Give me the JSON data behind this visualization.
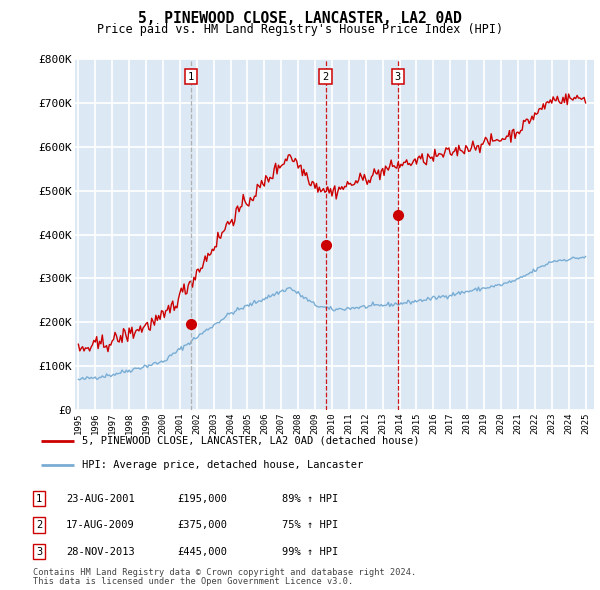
{
  "title": "5, PINEWOOD CLOSE, LANCASTER, LA2 0AD",
  "subtitle": "Price paid vs. HM Land Registry's House Price Index (HPI)",
  "ylim": [
    0,
    800000
  ],
  "yticks": [
    0,
    100000,
    200000,
    300000,
    400000,
    500000,
    600000,
    700000,
    800000
  ],
  "ytick_labels": [
    "£0",
    "£100K",
    "£200K",
    "£300K",
    "£400K",
    "£500K",
    "£600K",
    "£700K",
    "£800K"
  ],
  "xlim_start": 1994.8,
  "xlim_end": 2025.5,
  "plot_bg_color": "#dce9f5",
  "grid_color": "#ffffff",
  "red_line_color": "#cc0000",
  "blue_line_color": "#7aadd4",
  "transactions": [
    {
      "num": 1,
      "date": "23-AUG-2001",
      "price": 195000,
      "year": 2001.64,
      "hpi_pct": "89%",
      "direction": "↑",
      "vline_style": "dashed",
      "vline_color": "#aaaaaa"
    },
    {
      "num": 2,
      "date": "17-AUG-2009",
      "price": 375000,
      "year": 2009.62,
      "hpi_pct": "75%",
      "direction": "↑",
      "vline_style": "dashed",
      "vline_color": "#cc0000"
    },
    {
      "num": 3,
      "date": "28-NOV-2013",
      "price": 445000,
      "year": 2013.9,
      "hpi_pct": "99%",
      "direction": "↑",
      "vline_style": "dashed",
      "vline_color": "#cc0000"
    }
  ],
  "legend_prop_label": "5, PINEWOOD CLOSE, LANCASTER, LA2 0AD (detached house)",
  "legend_hpi_label": "HPI: Average price, detached house, Lancaster",
  "footnote1": "Contains HM Land Registry data © Crown copyright and database right 2024.",
  "footnote2": "This data is licensed under the Open Government Licence v3.0.",
  "xtick_years": [
    1995,
    1996,
    1997,
    1998,
    1999,
    2000,
    2001,
    2002,
    2003,
    2004,
    2005,
    2006,
    2007,
    2008,
    2009,
    2010,
    2011,
    2012,
    2013,
    2014,
    2015,
    2016,
    2017,
    2018,
    2019,
    2020,
    2021,
    2022,
    2023,
    2024,
    2025
  ]
}
